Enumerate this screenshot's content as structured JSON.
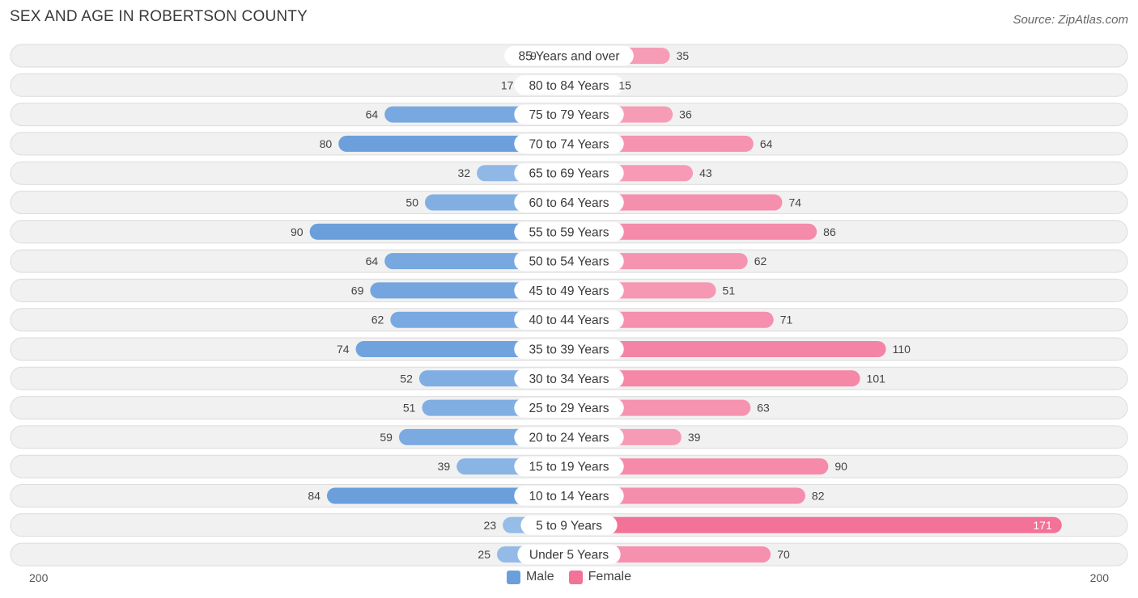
{
  "title": "SEX AND AGE IN ROBERTSON COUNTY",
  "source": "Source: ZipAtlas.com",
  "colors": {
    "male": "#6a9fdc",
    "male_light": "#a7c8ec",
    "female": "#f37298",
    "female_light": "#f7a8c0"
  },
  "legend": {
    "male": "Male",
    "female": "Female"
  },
  "axis": {
    "left": "200",
    "right": "200"
  },
  "chart_data": {
    "type": "bar",
    "orientation": "horizontal-diverging",
    "title": "SEX AND AGE IN ROBERTSON COUNTY",
    "categories": [
      "85 Years and over",
      "80 to 84 Years",
      "75 to 79 Years",
      "70 to 74 Years",
      "65 to 69 Years",
      "60 to 64 Years",
      "55 to 59 Years",
      "50 to 54 Years",
      "45 to 49 Years",
      "40 to 44 Years",
      "35 to 39 Years",
      "30 to 34 Years",
      "25 to 29 Years",
      "20 to 24 Years",
      "15 to 19 Years",
      "10 to 14 Years",
      "5 to 9 Years",
      "Under 5 Years"
    ],
    "series": [
      {
        "name": "Male",
        "values": [
          9,
          17,
          64,
          80,
          32,
          50,
          90,
          64,
          69,
          62,
          74,
          52,
          51,
          59,
          39,
          84,
          23,
          25
        ]
      },
      {
        "name": "Female",
        "values": [
          35,
          15,
          36,
          64,
          43,
          74,
          86,
          62,
          51,
          71,
          110,
          101,
          63,
          39,
          90,
          82,
          171,
          70
        ]
      }
    ],
    "xlim": [
      -200,
      200
    ],
    "legend_position": "bottom-center"
  }
}
